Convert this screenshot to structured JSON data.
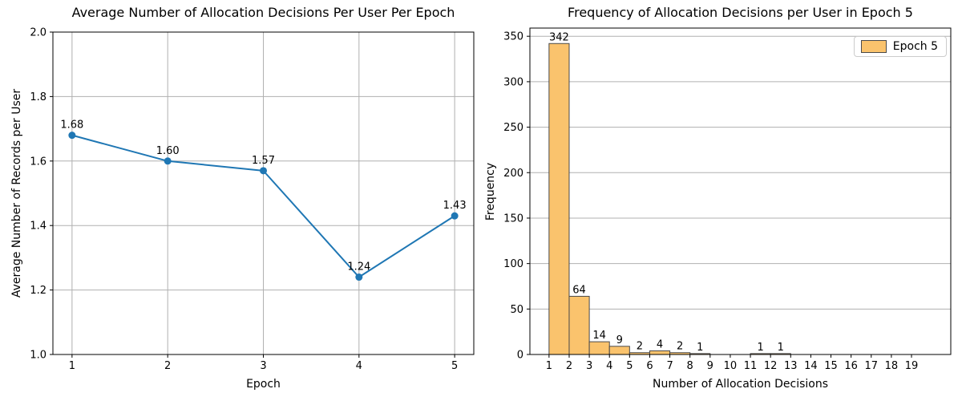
{
  "figure": {
    "background": "#ffffff",
    "grid_color": "#b0b0b0",
    "spine_color": "#000000"
  },
  "chart_data": [
    {
      "type": "line",
      "title": "Average Number of Allocation Decisions Per User Per Epoch",
      "xlabel": "Epoch",
      "ylabel": "Average Number of Records per User",
      "x": [
        1,
        2,
        3,
        4,
        5
      ],
      "y": [
        1.68,
        1.6,
        1.57,
        1.24,
        1.43
      ],
      "point_labels": [
        "1.68",
        "1.60",
        "1.57",
        "1.24",
        "1.43"
      ],
      "xticks": [
        1,
        2,
        3,
        4,
        5
      ],
      "xtick_labels": [
        "1",
        "2",
        "3",
        "4",
        "5"
      ],
      "yticks": [
        1.0,
        1.2,
        1.4,
        1.6,
        1.8,
        2.0
      ],
      "ytick_labels": [
        "1.0",
        "1.2",
        "1.4",
        "1.6",
        "1.8",
        "2.0"
      ],
      "xlim": [
        0.8,
        5.2
      ],
      "ylim": [
        1.0,
        2.0
      ],
      "grid": "both",
      "line_color": "#1f77b4",
      "marker": "circle"
    },
    {
      "type": "bar",
      "title": "Frequency of Allocation Decisions per User in Epoch 5",
      "xlabel": "Number of Allocation Decisions",
      "ylabel": "Frequency",
      "bin_starts": [
        1,
        2,
        3,
        4,
        5,
        6,
        7,
        8,
        9,
        10,
        11,
        12
      ],
      "bin_width": 1,
      "values": [
        342,
        64,
        14,
        9,
        2,
        4,
        2,
        1,
        0,
        0,
        1,
        1
      ],
      "bar_labels": [
        "342",
        "64",
        "14",
        "9",
        "2",
        "4",
        "2",
        "1",
        "",
        "",
        "1",
        "1"
      ],
      "xticks": [
        1,
        2,
        3,
        4,
        5,
        6,
        7,
        8,
        9,
        10,
        11,
        12,
        13,
        14,
        15,
        16,
        17,
        18,
        19
      ],
      "xtick_labels": [
        "1",
        "2",
        "3",
        "4",
        "5",
        "6",
        "7",
        "8",
        "9",
        "10",
        "11",
        "12",
        "13",
        "14",
        "15",
        "16",
        "17",
        "18",
        "19"
      ],
      "yticks": [
        0,
        50,
        100,
        150,
        200,
        250,
        300,
        350
      ],
      "ytick_labels": [
        "0",
        "50",
        "100",
        "150",
        "200",
        "250",
        "300",
        "350"
      ],
      "xlim": [
        0.05,
        20.95
      ],
      "ylim": [
        0,
        359
      ],
      "grid": "y",
      "bar_color": "#fac36d",
      "bar_edge_color": "#4a4a4a",
      "legend": {
        "label": "Epoch 5"
      }
    }
  ]
}
